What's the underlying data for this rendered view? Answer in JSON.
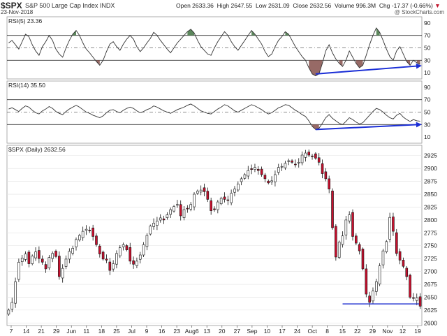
{
  "header": {
    "symbol": "$SPX",
    "name": "S&P 500 Large Cap Index INDX",
    "date": "23-Nov-2018",
    "open_label": "Open",
    "open": "2633.36",
    "high_label": "High",
    "high": "2647.55",
    "low_label": "Low",
    "low": "2631.09",
    "close_label": "Close",
    "close": "2632.56",
    "volume_label": "Volume",
    "volume": "996.3M",
    "chg_label": "Chg",
    "chg": "-17.37 (-0.66%)",
    "chg_marker": "▼",
    "brand": "@ StockCharts.com"
  },
  "colors": {
    "up_candle_fill": "#ffffff",
    "down_candle_fill": "#c8102e",
    "candle_outline": "#000000",
    "overbought_fill": "#4a7a4a",
    "oversold_fill": "#8c5a55",
    "divergence_line": "#1a2ed6",
    "support_line": "#2434d0",
    "grid": "#e2e2e2"
  },
  "chart_data": [
    {
      "type": "line",
      "panel": "RSI(5)",
      "legend": "RSI(5) 23.36",
      "last_value": 23.36,
      "ylim": [
        0,
        100
      ],
      "y_ticks": [
        10,
        30,
        50,
        70,
        90
      ],
      "reference_lines": [
        30,
        50,
        70
      ],
      "values": [
        58,
        62,
        55,
        48,
        60,
        72,
        68,
        55,
        45,
        38,
        52,
        60,
        70,
        62,
        48,
        40,
        35,
        50,
        62,
        72,
        78,
        70,
        58,
        48,
        42,
        35,
        28,
        22,
        30,
        44,
        56,
        60,
        52,
        46,
        56,
        64,
        70,
        64,
        52,
        44,
        50,
        58,
        65,
        75,
        70,
        62,
        55,
        48,
        42,
        50,
        58,
        64,
        70,
        76,
        80,
        74,
        62,
        52,
        46,
        40,
        38,
        50,
        60,
        68,
        76,
        70,
        60,
        52,
        46,
        54,
        62,
        70,
        78,
        72,
        64,
        56,
        44,
        36,
        40,
        52,
        62,
        68,
        76,
        72,
        62,
        52,
        44,
        36,
        30,
        18,
        8,
        5,
        8,
        25,
        45,
        55,
        42,
        32,
        25,
        20,
        30,
        45,
        35,
        25,
        18,
        22,
        38,
        55,
        70,
        82,
        75,
        62,
        48,
        36,
        30,
        45,
        52,
        40,
        28,
        22,
        30,
        26,
        23.36
      ],
      "arrow": {
        "from_value": 8,
        "to_value": 21,
        "color": "#1a2ed6"
      }
    },
    {
      "type": "line",
      "panel": "RSI(14)",
      "legend": "RSI(14) 35.50",
      "last_value": 35.5,
      "ylim": [
        0,
        100
      ],
      "y_ticks": [
        10,
        30,
        50,
        70,
        90
      ],
      "reference_lines": [
        30,
        50,
        70
      ],
      "values": [
        55,
        57,
        54,
        51,
        56,
        60,
        58,
        53,
        49,
        47,
        52,
        55,
        59,
        56,
        51,
        48,
        46,
        51,
        55,
        58,
        61,
        58,
        54,
        50,
        48,
        45,
        43,
        41,
        44,
        49,
        53,
        54,
        51,
        49,
        53,
        56,
        58,
        56,
        52,
        49,
        51,
        54,
        56,
        60,
        58,
        55,
        52,
        50,
        48,
        51,
        54,
        56,
        58,
        61,
        63,
        60,
        56,
        52,
        50,
        48,
        47,
        51,
        55,
        58,
        62,
        60,
        56,
        52,
        50,
        53,
        56,
        59,
        62,
        60,
        57,
        54,
        50,
        47,
        49,
        53,
        57,
        59,
        62,
        61,
        57,
        53,
        50,
        46,
        43,
        36,
        27,
        22,
        24,
        32,
        41,
        46,
        40,
        36,
        32,
        30,
        35,
        41,
        38,
        34,
        31,
        33,
        39,
        45,
        51,
        56,
        54,
        50,
        45,
        41,
        39,
        45,
        48,
        42,
        38,
        35,
        38,
        36,
        35.5
      ],
      "arrow": {
        "from_value": 22,
        "to_value": 30,
        "color": "#1a2ed6"
      }
    },
    {
      "type": "candlestick",
      "panel": "$SPX (Daily)",
      "legend": "$SPX (Daily) 2632.56",
      "ylim": [
        2595,
        2945
      ],
      "y_ticks": [
        2600,
        2625,
        2650,
        2675,
        2700,
        2725,
        2750,
        2775,
        2800,
        2825,
        2850,
        2875,
        2900,
        2925
      ],
      "x_ticks": [
        "7",
        "14",
        "21",
        "29",
        "Jun",
        "11",
        "18",
        "25",
        "Jul",
        "9",
        "16",
        "23",
        "Aug6",
        "13",
        "20",
        "27",
        "Sep",
        "10",
        "17",
        "24",
        "Oct",
        "8",
        "15",
        "22",
        "29",
        "Nov",
        "12",
        "19"
      ],
      "close": [
        2625,
        2640,
        2680,
        2718,
        2726,
        2734,
        2715,
        2730,
        2738,
        2725,
        2718,
        2705,
        2727,
        2735,
        2729,
        2690,
        2706,
        2724,
        2739,
        2745,
        2762,
        2770,
        2778,
        2782,
        2780,
        2768,
        2752,
        2734,
        2724,
        2722,
        2702,
        2715,
        2735,
        2746,
        2752,
        2742,
        2720,
        2714,
        2720,
        2732,
        2752,
        2770,
        2788,
        2794,
        2798,
        2804,
        2800,
        2810,
        2820,
        2826,
        2830,
        2808,
        2820,
        2822,
        2830,
        2850,
        2856,
        2858,
        2855,
        2840,
        2818,
        2820,
        2835,
        2842,
        2840,
        2838,
        2852,
        2860,
        2870,
        2880,
        2888,
        2896,
        2898,
        2902,
        2896,
        2888,
        2880,
        2872,
        2876,
        2888,
        2902,
        2904,
        2910,
        2915,
        2912,
        2908,
        2912,
        2926,
        2930,
        2926,
        2924,
        2920,
        2912,
        2890,
        2880,
        2860,
        2785,
        2728,
        2757,
        2769,
        2800,
        2810,
        2768,
        2755,
        2740,
        2705,
        2656,
        2640,
        2662,
        2680,
        2711,
        2740,
        2758,
        2805,
        2778,
        2735,
        2722,
        2710,
        2690,
        2650,
        2648,
        2649,
        2632.56
      ],
      "support_line": {
        "value": 2637
      }
    }
  ]
}
